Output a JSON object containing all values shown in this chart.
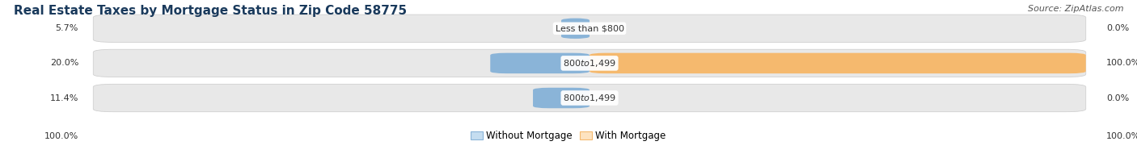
{
  "title": "Real Estate Taxes by Mortgage Status in Zip Code 58775",
  "source": "Source: ZipAtlas.com",
  "rows": [
    {
      "label_left": "5.7%",
      "bar_label": "Less than $800",
      "label_right": "0.0%",
      "without_mortgage": 5.7,
      "with_mortgage": 0.0
    },
    {
      "label_left": "20.0%",
      "bar_label": "$800 to $1,499",
      "label_right": "100.0%",
      "without_mortgage": 20.0,
      "with_mortgage": 100.0
    },
    {
      "label_left": "11.4%",
      "bar_label": "$800 to $1,499",
      "label_right": "0.0%",
      "without_mortgage": 11.4,
      "with_mortgage": 0.0
    }
  ],
  "bottom_left": "100.0%",
  "bottom_right": "100.0%",
  "color_without": "#8ab4d8",
  "color_with": "#f5b96e",
  "color_without_light": "#c5ddf0",
  "color_with_light": "#fde3c0",
  "bar_bg_color": "#e8e8e8",
  "bar_bg_edge": "#d0d0d0",
  "legend_labels": [
    "Without Mortgage",
    "With Mortgage"
  ],
  "title_fontsize": 11,
  "source_fontsize": 8,
  "label_fontsize": 8,
  "bar_label_fontsize": 8,
  "max_val": 100.0,
  "title_color": "#1a3a5c",
  "source_color": "#555555",
  "label_color": "#333333"
}
